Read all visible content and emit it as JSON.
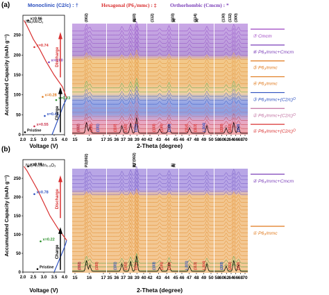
{
  "header": {
    "panel_a": "(a)",
    "mono": "Monoclinic (C2/c) : †",
    "hex": "Hexagonal (P6₃/mmc) : ‡",
    "ortho": "Orthorhombic (Cmcm) : *"
  },
  "panel_b_label": "(b)",
  "chart_data": [
    {
      "type": "line",
      "panel": "a-voltage",
      "ylabel": "Accumulated Capacity (mAh g⁻¹)",
      "xlabel": "Voltage (V)",
      "x_ticks": [
        "2.0",
        "2.5",
        "3.0",
        "3.5",
        "4.0"
      ],
      "y_ticks": [
        "0",
        "50",
        "100",
        "150",
        "200",
        "250"
      ],
      "xlim": [
        2.0,
        4.0
      ],
      "ylim": [
        0,
        300
      ],
      "material": "Na₂MnO₃",
      "annotations": [
        {
          "text": "x=0.96",
          "color": "#000000",
          "capacity": 287,
          "voltage": 2.25
        },
        {
          "text": "x=0.74",
          "color": "#d93030",
          "capacity": 220,
          "voltage": 2.55
        },
        {
          "text": "x=0.60",
          "color": "#7a3db8",
          "capacity": 182,
          "voltage": 3.25
        },
        {
          "text": "x=0.28",
          "color": "#e0781a",
          "capacity": 95,
          "voltage": 2.95
        },
        {
          "text": "x=0.23",
          "color": "#2a8f2a",
          "capacity": 87,
          "voltage": 3.6
        },
        {
          "text": "x=0.46",
          "color": "#2b4fbf",
          "capacity": 47,
          "voltage": 3.05
        },
        {
          "text": "x=0.55",
          "color": "#c9304a",
          "capacity": 21,
          "voltage": 2.55
        },
        {
          "text": "Pristine",
          "color": "#000000",
          "capacity": 6,
          "voltage": 2.1
        }
      ],
      "discharge_label": "Discharge",
      "charge_label": "Charge",
      "series": [
        {
          "name": "Charge",
          "color": "#2b4fbf",
          "x": [
            3.4,
            3.55,
            3.7,
            3.85,
            3.95,
            4.05,
            4.1
          ],
          "y": [
            0,
            20,
            40,
            60,
            75,
            85,
            92
          ]
        },
        {
          "name": "Discharge",
          "color": "#d93030",
          "x": [
            4.1,
            3.9,
            3.5,
            3.1,
            2.8,
            2.5,
            2.3,
            2.15,
            2.05
          ],
          "y": [
            92,
            120,
            150,
            185,
            215,
            240,
            262,
            278,
            287
          ]
        }
      ]
    },
    {
      "type": "line",
      "panel": "a-xrd",
      "xlabel": "2-Theta (degree)",
      "x_ticks": [
        "15",
        "16",
        "17",
        "35",
        "36",
        "37",
        "38",
        "39",
        "40",
        "42",
        "43",
        "44",
        "45",
        "46",
        "47",
        "48",
        "49",
        "50",
        "58",
        "60",
        "62",
        "64",
        "66",
        "68",
        "70"
      ],
      "peak_labels_top": [
        "(002)",
        "(110)",
        "Al",
        "(103)",
        "Al",
        "(112)",
        "Al",
        "(114)",
        "(130)",
        "(132)",
        "(300)"
      ],
      "peak_labels_bottom": [
        "(002)",
        "(002)",
        "(100)",
        "(101)",
        "(110)",
        "(102)",
        "(111)",
        "(103)",
        "(104)",
        "(112)",
        "(114)",
        "(113)",
        "(-204)",
        "(200)",
        "(202)",
        "(110)"
      ],
      "legend": [
        {
          "label": "⑦ Cmcm",
          "color": "#9b3fc0"
        },
        {
          "label": "⑥ P6₃/mmc+Cmcm",
          "color": "#7a3db8"
        },
        {
          "label": "⑤ P6₃/mmc",
          "color": "#e0781a"
        },
        {
          "label": "④ P6₃/mmc",
          "color": "#e0781a"
        },
        {
          "label": "③ P6₃/mmc+(C2/c)ᴼ",
          "color": "#2b4fbf"
        },
        {
          "label": "② P6₃/mmc+(C2/c)ᴼ",
          "color": "#c070a0"
        },
        {
          "label": "① P6₃/mmc+(C2/c)ᴼ",
          "color": "#d93030"
        }
      ]
    },
    {
      "type": "line",
      "panel": "b-voltage",
      "ylabel": "Accumulated Capacity (mAh g⁻¹)",
      "xlabel": "Voltage (V)",
      "x_ticks": [
        "2.0",
        "2.5",
        "3.0",
        "3.5",
        "4.0"
      ],
      "y_ticks": [
        "0",
        "50",
        "100",
        "150",
        "200",
        "250"
      ],
      "xlim": [
        2.0,
        4.0
      ],
      "ylim": [
        0,
        300
      ],
      "material": "Na₂Al₀.₁Mn₀.₉O₃",
      "annotations": [
        {
          "text": "x=0.98",
          "color": "#000000",
          "capacity": 282,
          "voltage": 2.25
        },
        {
          "text": "x=0.78",
          "color": "#2b4fbf",
          "capacity": 208,
          "voltage": 2.55
        },
        {
          "text": "x=0.22",
          "color": "#2a8f2a",
          "capacity": 82,
          "voltage": 2.85
        },
        {
          "text": "Pristine",
          "color": "#000000",
          "capacity": 8,
          "voltage": 2.7
        }
      ],
      "discharge_label": "Discharge",
      "charge_label": "Charge",
      "series": [
        {
          "name": "Charge",
          "color": "#2b4fbf",
          "x": [
            3.5,
            3.65,
            3.8,
            3.95,
            4.05,
            4.1
          ],
          "y": [
            0,
            20,
            40,
            60,
            75,
            85
          ]
        },
        {
          "name": "Discharge",
          "color": "#d93030",
          "x": [
            4.1,
            3.7,
            3.3,
            3.0,
            2.7,
            2.4,
            2.2,
            2.05
          ],
          "y": [
            85,
            115,
            150,
            185,
            220,
            250,
            270,
            282
          ]
        }
      ]
    },
    {
      "type": "line",
      "panel": "b-xrd",
      "xlabel": "2-Theta (degree)",
      "x_ticks": [
        "15",
        "16",
        "17",
        "35",
        "36",
        "37",
        "38",
        "39",
        "40",
        "42",
        "43",
        "44",
        "45",
        "46",
        "47",
        "48",
        "49",
        "50",
        "58",
        "60",
        "62",
        "64",
        "66",
        "68",
        "70"
      ],
      "peak_labels_top": [
        "P2(002)",
        "P2'(002)",
        "Al",
        "Al",
        "Al"
      ],
      "peak_labels_bottom": [
        "(002)",
        "(002)",
        "(100)",
        "(101)",
        "(102)",
        "(111)",
        "(103)",
        "(104)",
        "(112)",
        "(-201)",
        "(113)",
        "(-204)",
        "(200)",
        "(202)",
        "(110)"
      ],
      "legend": [
        {
          "label": "② P6₃/mmc+Cmcm",
          "color": "#7a3db8"
        },
        {
          "label": "① P6₃/mmc",
          "color": "#e0781a"
        }
      ]
    }
  ]
}
